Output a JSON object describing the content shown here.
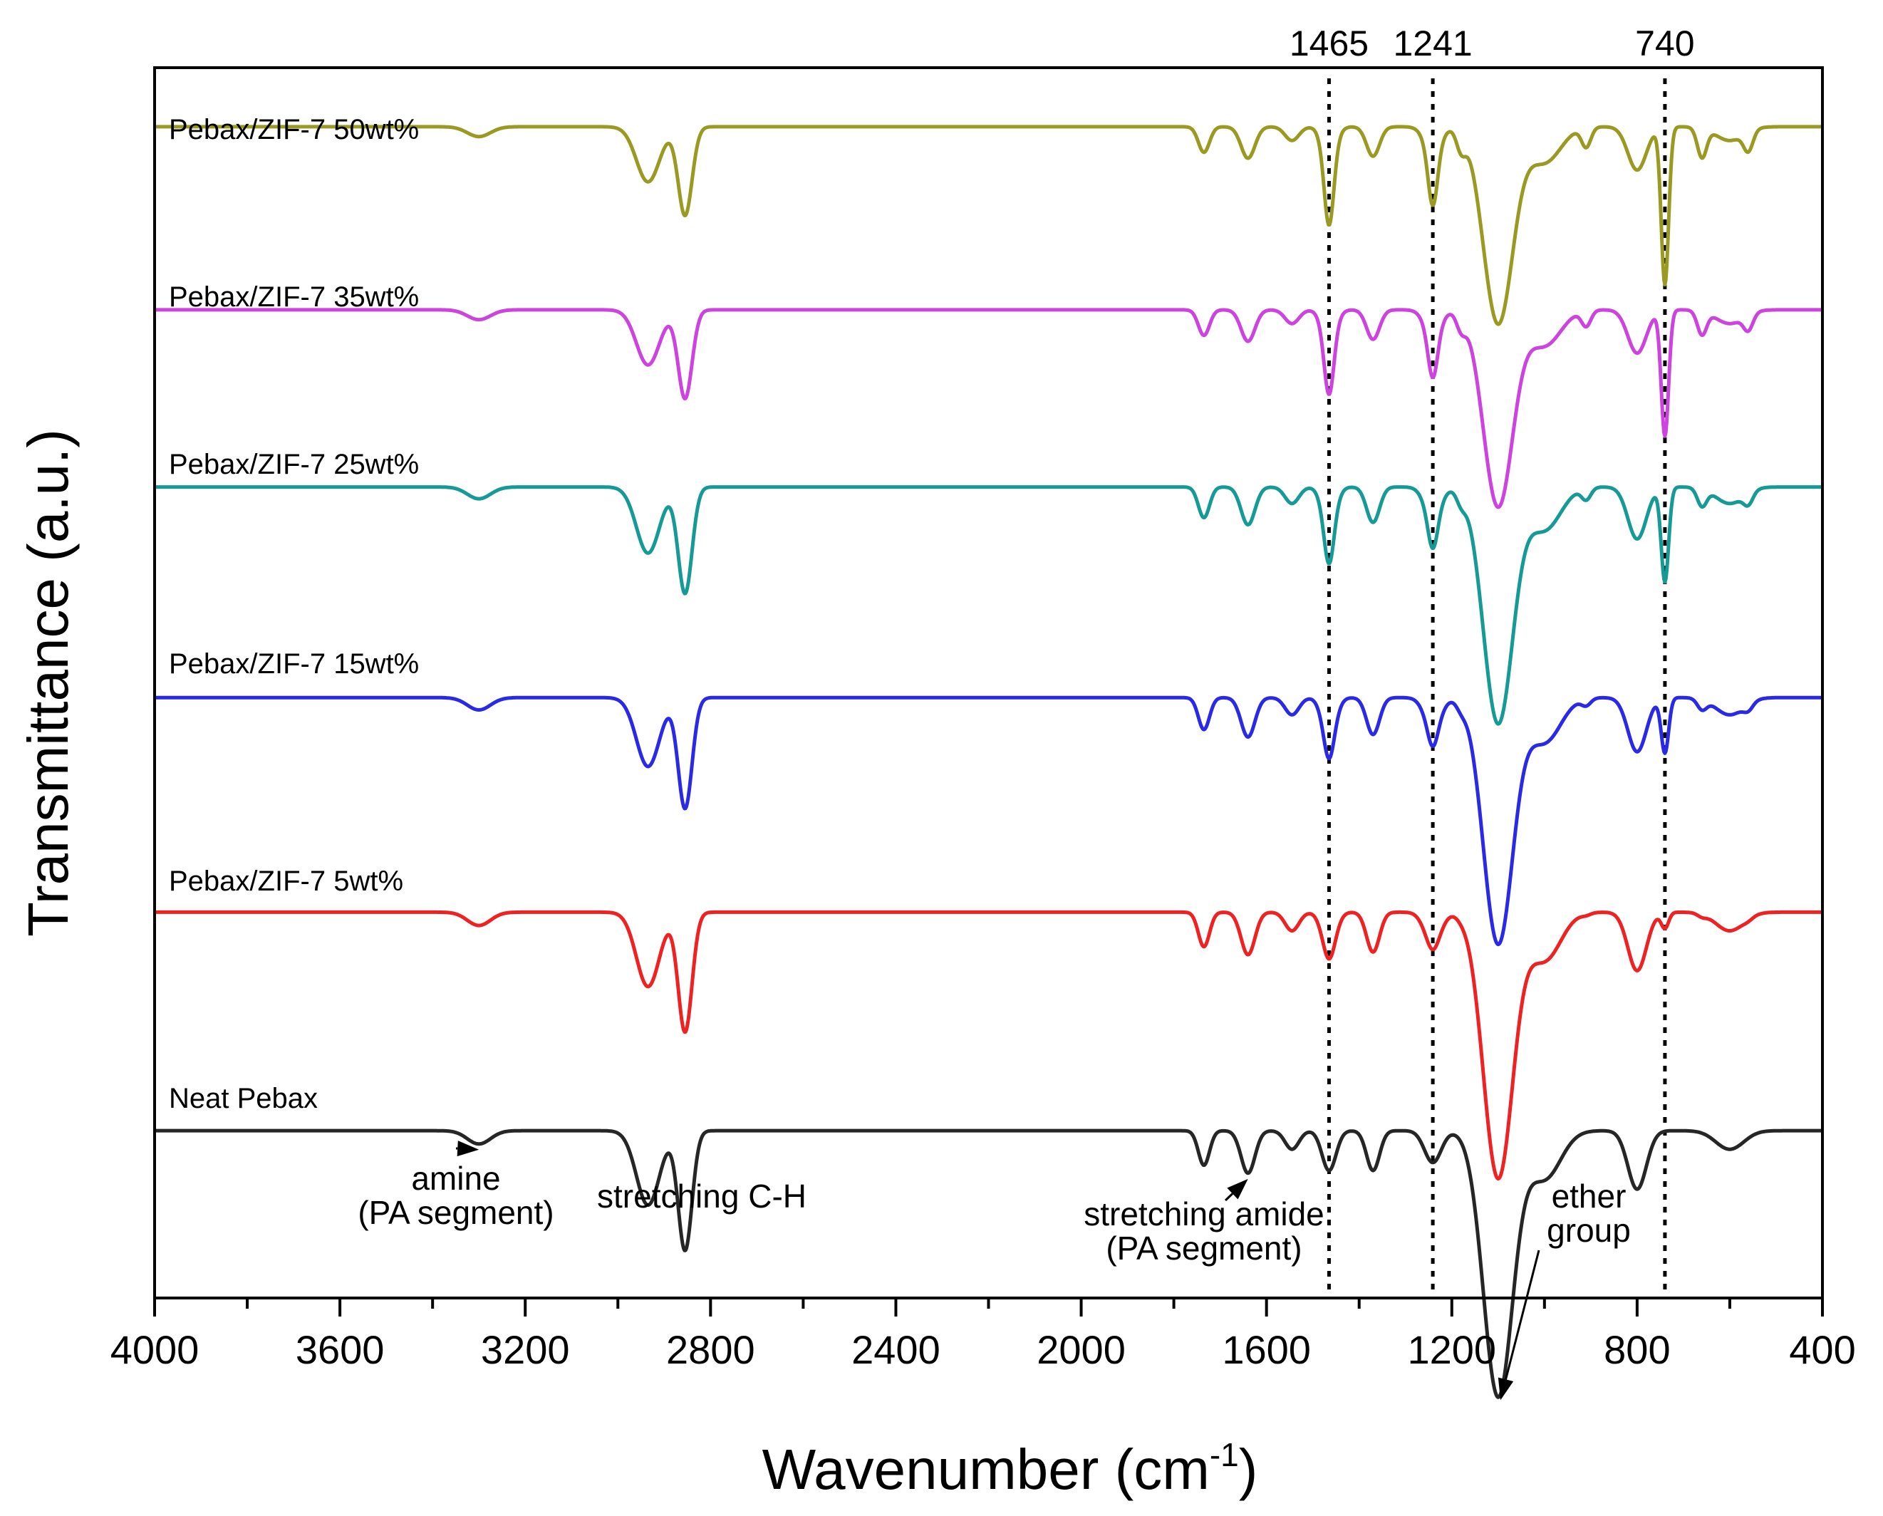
{
  "chart_data": {
    "type": "line",
    "title": "",
    "xlabel": "Wavenumber (cm",
    "xlabel_sup": "-1",
    "xlabel_close": ")",
    "ylabel": "Transmittance (a.u.)",
    "xlim": [
      4000,
      400
    ],
    "x_reversed": true,
    "ylim": [
      0,
      6.25
    ],
    "yticks_shown": false,
    "xticks": [
      "4000",
      "3600",
      "3200",
      "2800",
      "2400",
      "2000",
      "1600",
      "1200",
      "800",
      "400"
    ],
    "xtick_values": [
      4000,
      3600,
      3200,
      2800,
      2400,
      2000,
      1600,
      1200,
      800,
      400
    ],
    "peak_markers": [
      {
        "x": 1465,
        "label": "1465"
      },
      {
        "x": 1241,
        "label": "1241"
      },
      {
        "x": 740,
        "label": "740"
      }
    ],
    "annotations": [
      {
        "lines": [
          "amine",
          "(PA segment)"
        ],
        "target_x": 3300,
        "target_series": "Neat Pebax"
      },
      {
        "lines": [
          "stretching C-H"
        ],
        "target_x": null,
        "target_series": "Neat Pebax"
      },
      {
        "lines": [
          "stretching amide",
          "(PA segment)"
        ],
        "target_x": 1640,
        "target_series": "Neat Pebax"
      },
      {
        "lines": [
          "ether",
          "group"
        ],
        "target_x": 1095,
        "target_series": "Neat Pebax"
      }
    ],
    "series": [
      {
        "name": "Pebax/ZIF-7 50wt%",
        "color": "#9a9a23",
        "baseline": 5.95,
        "intensity": 1.0,
        "zif": 1.0
      },
      {
        "name": "Pebax/ZIF-7 35wt%",
        "color": "#cc44dd",
        "baseline": 5.02,
        "intensity": 1.0,
        "zif": 0.8
      },
      {
        "name": "Pebax/ZIF-7 25wt%",
        "color": "#159a95",
        "baseline": 4.12,
        "intensity": 1.2,
        "zif": 0.6
      },
      {
        "name": "Pebax/ZIF-7 15wt%",
        "color": "#2a2ae6",
        "baseline": 3.05,
        "intensity": 1.25,
        "zif": 0.35
      },
      {
        "name": "Pebax/ZIF-7 5wt%",
        "color": "#ee2222",
        "baseline": 1.96,
        "intensity": 1.35,
        "zif": 0.1
      },
      {
        "name": "Neat Pebax",
        "color": "#262626",
        "baseline": 0.85,
        "intensity": 1.35,
        "zif": 0.0
      }
    ],
    "common_bands": [
      {
        "center": 3300,
        "width": 25,
        "depth": 0.05
      },
      {
        "center": 2935,
        "width": 25,
        "depth": 0.28
      },
      {
        "center": 2855,
        "width": 15,
        "depth": 0.45
      },
      {
        "center": 1735,
        "width": 12,
        "depth": 0.13
      },
      {
        "center": 1640,
        "width": 15,
        "depth": 0.16
      },
      {
        "center": 1545,
        "width": 15,
        "depth": 0.07
      },
      {
        "center": 1465,
        "width": 15,
        "depth": 0.15
      },
      {
        "center": 1370,
        "width": 14,
        "depth": 0.15
      },
      {
        "center": 1241,
        "width": 18,
        "depth": 0.12
      },
      {
        "center": 1100,
        "width": 32,
        "depth": 1.0
      },
      {
        "center": 1000,
        "width": 35,
        "depth": 0.18
      },
      {
        "center": 800,
        "width": 20,
        "depth": 0.22
      },
      {
        "center": 600,
        "width": 30,
        "depth": 0.07
      }
    ],
    "zif_bands": [
      {
        "center": 1465,
        "width": 10,
        "depth": 0.35
      },
      {
        "center": 1241,
        "width": 10,
        "depth": 0.28
      },
      {
        "center": 1180,
        "width": 10,
        "depth": 0.1
      },
      {
        "center": 910,
        "width": 10,
        "depth": 0.1
      },
      {
        "center": 740,
        "width": 8,
        "depth": 0.8
      },
      {
        "center": 660,
        "width": 10,
        "depth": 0.15
      },
      {
        "center": 560,
        "width": 10,
        "depth": 0.1
      }
    ]
  }
}
